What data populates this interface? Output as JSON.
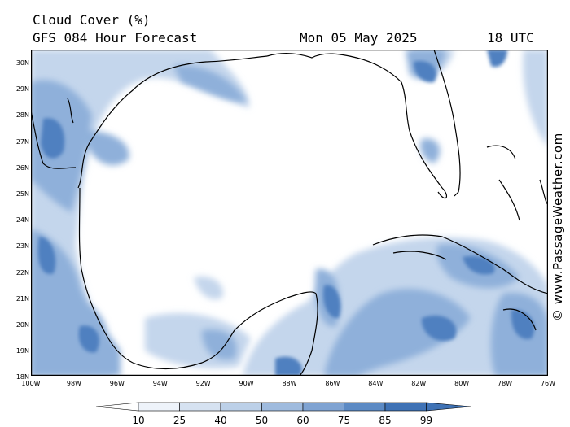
{
  "header": {
    "title": "Cloud Cover (%)",
    "model": "GFS 084 Hour Forecast",
    "date": "Mon 05 May 2025",
    "time": "18 UTC"
  },
  "credit": "© www.PassageWeather.com",
  "map": {
    "lat_labels": [
      "30N",
      "29N",
      "28N",
      "27N",
      "26N",
      "25N",
      "24N",
      "23N",
      "22N",
      "21N",
      "20N",
      "19N",
      "18N"
    ],
    "lon_labels": [
      "100W",
      "98W",
      "96W",
      "94W",
      "92W",
      "90W",
      "88W",
      "86W",
      "84W",
      "82W",
      "80W",
      "78W",
      "76W"
    ],
    "lat_range": [
      18,
      30.5
    ],
    "lon_range": [
      -100,
      -76
    ],
    "field_color": "#3f72b5",
    "land_outline_color": "#000000"
  },
  "colorbar": {
    "labels": [
      "10",
      "25",
      "40",
      "50",
      "60",
      "75",
      "85",
      "99"
    ],
    "colors": [
      "#ffffff",
      "#eef3fa",
      "#d6e2f1",
      "#bcd0e8",
      "#9fbbde",
      "#7fa3d2",
      "#5c8ac4",
      "#3f72b5"
    ]
  }
}
